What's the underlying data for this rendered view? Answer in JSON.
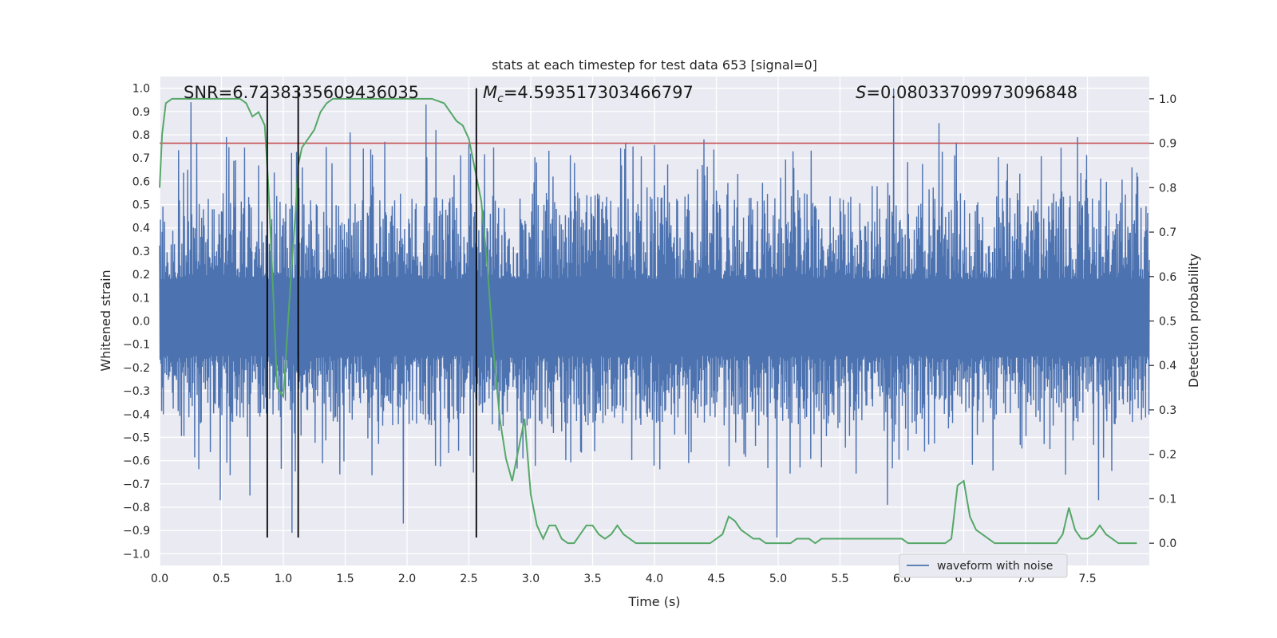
{
  "chart_data": {
    "type": "line",
    "title": "stats at each timestep for test data 653 [signal=0]",
    "xlabel": "Time (s)",
    "ylabel_left": "Whitened strain",
    "ylabel_right": "Detection probability",
    "xlim": [
      0.0,
      8.0
    ],
    "ylim_left": [
      -1.05,
      1.05
    ],
    "ylim_right": [
      -0.05,
      1.05
    ],
    "x_ticks": [
      0.0,
      0.5,
      1.0,
      1.5,
      2.0,
      2.5,
      3.0,
      3.5,
      4.0,
      4.5,
      5.0,
      5.5,
      6.0,
      6.5,
      7.0,
      7.5
    ],
    "x_tick_labels": [
      "0.0",
      "0.5",
      "1.0",
      "1.5",
      "2.0",
      "2.5",
      "3.0",
      "3.5",
      "4.0",
      "4.5",
      "5.0",
      "5.5",
      "6.0",
      "6.5",
      "7.0",
      "7.5"
    ],
    "y_left_ticks": [
      -1.0,
      -0.9,
      -0.8,
      -0.7,
      -0.6,
      -0.5,
      -0.4,
      -0.3,
      -0.2,
      -0.1,
      0.0,
      0.1,
      0.2,
      0.3,
      0.4,
      0.5,
      0.6,
      0.7,
      0.8,
      0.9,
      1.0
    ],
    "y_left_tick_labels": [
      "−1.0",
      "−0.9",
      "−0.8",
      "−0.7",
      "−0.6",
      "−0.5",
      "−0.4",
      "−0.3",
      "−0.2",
      "−0.1",
      "0.0",
      "0.1",
      "0.2",
      "0.3",
      "0.4",
      "0.5",
      "0.6",
      "0.7",
      "0.8",
      "0.9",
      "1.0"
    ],
    "y_right_ticks": [
      0.0,
      0.1,
      0.2,
      0.3,
      0.4,
      0.5,
      0.6,
      0.7,
      0.8,
      0.9,
      1.0
    ],
    "y_right_tick_labels": [
      "0.0",
      "0.1",
      "0.2",
      "0.3",
      "0.4",
      "0.5",
      "0.6",
      "0.7",
      "0.8",
      "0.9",
      "1.0"
    ],
    "annotations": {
      "snr": "SNR=6.7238335609436035",
      "mc_symbol": "M",
      "mc_subscript": "c",
      "mc_value": "=4.593517303466797",
      "s_symbol": "S",
      "s_value": "=0.08033709973096848"
    },
    "legend": {
      "label": "waveform with noise",
      "location": "lower right"
    },
    "threshold": {
      "value": 0.9,
      "axis": "right",
      "color": "#c44e52"
    },
    "vertical_lines": {
      "x": [
        0.87,
        1.12,
        2.56
      ],
      "ymin": -0.93,
      "ymax": 1.0,
      "color": "#000000"
    },
    "series": [
      {
        "name": "waveform with noise",
        "axis": "left",
        "color": "#4c72b0",
        "kind": "noise",
        "duration_s": 8.0,
        "typical_envelope": [
          -0.45,
          0.55
        ],
        "extremes": [
          {
            "t": 0.25,
            "v": 0.94
          },
          {
            "t": 0.54,
            "v": 0.79
          },
          {
            "t": 1.15,
            "v": 0.66
          },
          {
            "t": 1.54,
            "v": 0.81
          },
          {
            "t": 1.82,
            "v": 0.77
          },
          {
            "t": 2.15,
            "v": 0.93
          },
          {
            "t": 2.23,
            "v": 0.82
          },
          {
            "t": 4.4,
            "v": 0.78
          },
          {
            "t": 5.93,
            "v": 1.0
          },
          {
            "t": 6.3,
            "v": 0.85
          },
          {
            "t": 7.42,
            "v": 0.79
          },
          {
            "t": 0.49,
            "v": -0.77
          },
          {
            "t": 0.73,
            "v": -0.75
          },
          {
            "t": 1.07,
            "v": -0.91
          },
          {
            "t": 1.97,
            "v": -0.87
          },
          {
            "t": 4.99,
            "v": -0.93
          },
          {
            "t": 5.88,
            "v": -0.79
          },
          {
            "t": 7.59,
            "v": -0.77
          }
        ]
      },
      {
        "name": "Detection probability",
        "axis": "right",
        "color": "#55a868",
        "x": [
          0.0,
          0.02,
          0.05,
          0.1,
          0.15,
          0.2,
          0.3,
          0.4,
          0.5,
          0.6,
          0.65,
          0.7,
          0.75,
          0.8,
          0.85,
          0.88,
          0.92,
          0.95,
          1.0,
          1.05,
          1.1,
          1.12,
          1.15,
          1.2,
          1.25,
          1.3,
          1.35,
          1.4,
          1.5,
          1.6,
          1.7,
          1.8,
          1.9,
          2.0,
          2.1,
          2.2,
          2.3,
          2.35,
          2.4,
          2.45,
          2.5,
          2.55,
          2.6,
          2.65,
          2.7,
          2.75,
          2.8,
          2.85,
          2.9,
          2.95,
          3.0,
          3.05,
          3.1,
          3.15,
          3.2,
          3.25,
          3.3,
          3.35,
          3.4,
          3.45,
          3.5,
          3.55,
          3.6,
          3.65,
          3.7,
          3.75,
          3.8,
          3.85,
          3.9,
          4.0,
          4.1,
          4.2,
          4.3,
          4.4,
          4.45,
          4.5,
          4.55,
          4.6,
          4.65,
          4.7,
          4.75,
          4.8,
          4.85,
          4.9,
          4.95,
          5.0,
          5.05,
          5.1,
          5.15,
          5.2,
          5.25,
          5.3,
          5.35,
          5.4,
          5.45,
          5.5,
          5.55,
          5.6,
          5.65,
          5.7,
          5.75,
          5.8,
          5.85,
          5.9,
          5.95,
          6.0,
          6.05,
          6.1,
          6.15,
          6.2,
          6.25,
          6.3,
          6.35,
          6.4,
          6.45,
          6.5,
          6.55,
          6.6,
          6.65,
          6.7,
          6.75,
          6.8,
          6.85,
          6.9,
          7.0,
          7.1,
          7.15,
          7.2,
          7.25,
          7.3,
          7.35,
          7.4,
          7.45,
          7.5,
          7.55,
          7.6,
          7.65,
          7.7,
          7.75,
          7.8,
          7.85,
          7.9
        ],
        "y": [
          0.8,
          0.92,
          0.99,
          1.0,
          1.0,
          1.0,
          1.0,
          1.0,
          1.0,
          1.0,
          1.0,
          0.99,
          0.96,
          0.97,
          0.94,
          0.8,
          0.55,
          0.35,
          0.33,
          0.55,
          0.75,
          0.85,
          0.89,
          0.91,
          0.93,
          0.97,
          0.99,
          1.0,
          1.0,
          1.0,
          1.0,
          1.0,
          1.0,
          1.0,
          1.0,
          1.0,
          0.99,
          0.97,
          0.95,
          0.94,
          0.91,
          0.84,
          0.77,
          0.62,
          0.43,
          0.28,
          0.19,
          0.14,
          0.21,
          0.28,
          0.11,
          0.04,
          0.01,
          0.04,
          0.04,
          0.01,
          0.0,
          0.0,
          0.02,
          0.04,
          0.04,
          0.02,
          0.01,
          0.02,
          0.04,
          0.02,
          0.01,
          0.0,
          0.0,
          0.0,
          0.0,
          0.0,
          0.0,
          0.0,
          0.0,
          0.01,
          0.02,
          0.06,
          0.05,
          0.03,
          0.02,
          0.01,
          0.01,
          0.0,
          0.0,
          0.0,
          0.0,
          0.0,
          0.01,
          0.01,
          0.01,
          0.0,
          0.01,
          0.01,
          0.01,
          0.01,
          0.01,
          0.01,
          0.01,
          0.01,
          0.01,
          0.01,
          0.01,
          0.01,
          0.01,
          0.01,
          0.0,
          0.0,
          0.0,
          0.0,
          0.0,
          0.0,
          0.0,
          0.01,
          0.13,
          0.14,
          0.06,
          0.03,
          0.02,
          0.01,
          0.0,
          0.0,
          0.0,
          0.0,
          0.0,
          0.0,
          0.0,
          0.0,
          0.0,
          0.02,
          0.08,
          0.03,
          0.01,
          0.01,
          0.02,
          0.04,
          0.02,
          0.01,
          0.0,
          0.0,
          0.0,
          0.0
        ]
      }
    ]
  }
}
